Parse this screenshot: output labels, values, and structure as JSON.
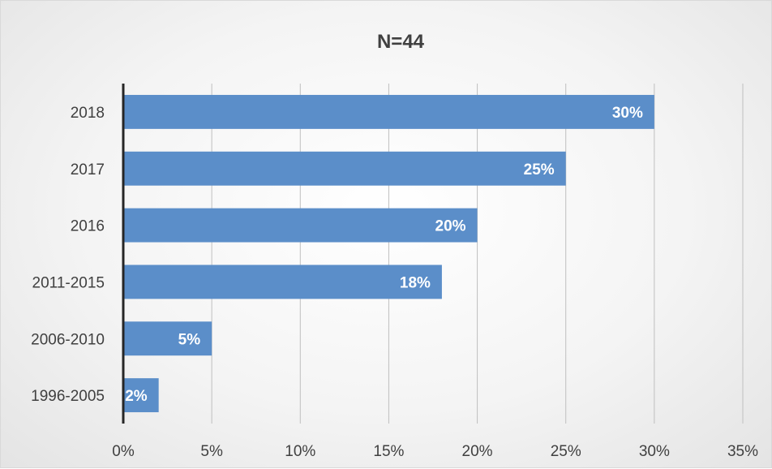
{
  "chart_data": {
    "type": "bar",
    "orientation": "horizontal",
    "title": "N=44",
    "categories": [
      "2018",
      "2017",
      "2016",
      "2011-2015",
      "2006-2010",
      "1996-2005"
    ],
    "values": [
      30,
      25,
      20,
      18,
      5,
      2
    ],
    "data_labels": [
      "30%",
      "25%",
      "20%",
      "18%",
      "5%",
      "2%"
    ],
    "x_ticks": [
      "0%",
      "5%",
      "10%",
      "15%",
      "20%",
      "25%",
      "30%",
      "35%"
    ],
    "xlim": [
      0,
      35
    ],
    "grid": "vertical",
    "bar_color": "#5b8ec9",
    "legend": "none"
  }
}
